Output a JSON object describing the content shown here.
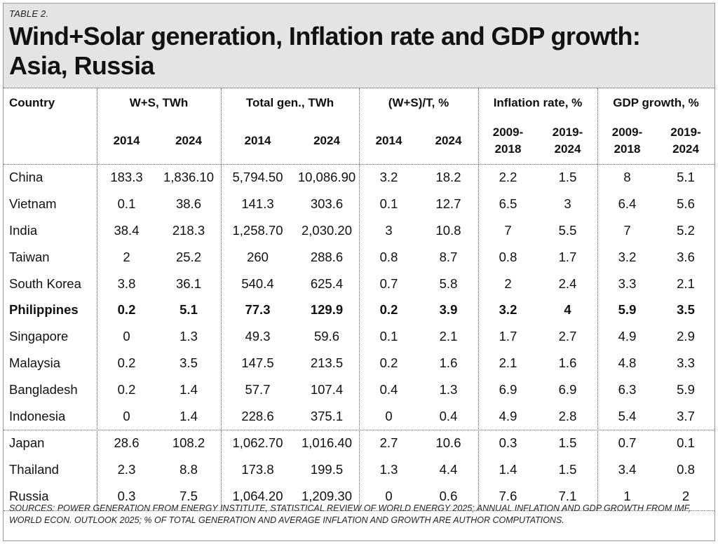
{
  "table_label": "TABLE 2.",
  "title_line1": "Wind+Solar generation, Inflation rate and GDP growth:",
  "title_line2": "Asia, Russia",
  "columns": {
    "country": "Country",
    "ws": "W+S, TWh",
    "total": "Total gen., TWh",
    "share": "(W+S)/T, %",
    "inflation": "Inflation rate, %",
    "gdp": "GDP growth, %"
  },
  "subheaders": [
    "2014",
    "2024",
    "2014",
    "2024",
    "2014",
    "2024",
    "2009-\n2018",
    "2019-\n2024",
    "2009-\n2018",
    "2019-\n2024"
  ],
  "rows": [
    {
      "country": "China",
      "v": [
        "183.3",
        "1,836.10",
        "5,794.50",
        "10,086.90",
        "3.2",
        "18.2",
        "2.2",
        "1.5",
        "8",
        "5.1"
      ]
    },
    {
      "country": "Vietnam",
      "v": [
        "0.1",
        "38.6",
        "141.3",
        "303.6",
        "0.1",
        "12.7",
        "6.5",
        "3",
        "6.4",
        "5.6"
      ]
    },
    {
      "country": "India",
      "v": [
        "38.4",
        "218.3",
        "1,258.70",
        "2,030.20",
        "3",
        "10.8",
        "7",
        "5.5",
        "7",
        "5.2"
      ]
    },
    {
      "country": "Taiwan",
      "v": [
        "2",
        "25.2",
        "260",
        "288.6",
        "0.8",
        "8.7",
        "0.8",
        "1.7",
        "3.2",
        "3.6"
      ]
    },
    {
      "country": "South Korea",
      "v": [
        "3.8",
        "36.1",
        "540.4",
        "625.4",
        "0.7",
        "5.8",
        "2",
        "2.4",
        "3.3",
        "2.1"
      ]
    },
    {
      "country": "Philippines",
      "v": [
        "0.2",
        "5.1",
        "77.3",
        "129.9",
        "0.2",
        "3.9",
        "3.2",
        "4",
        "5.9",
        "3.5"
      ]
    },
    {
      "country": "Singapore",
      "v": [
        "0",
        "1.3",
        "49.3",
        "59.6",
        "0.1",
        "2.1",
        "1.7",
        "2.7",
        "4.9",
        "2.9"
      ]
    },
    {
      "country": "Malaysia",
      "v": [
        "0.2",
        "3.5",
        "147.5",
        "213.5",
        "0.2",
        "1.6",
        "2.1",
        "1.6",
        "4.8",
        "3.3"
      ]
    },
    {
      "country": "Bangladesh",
      "v": [
        "0.2",
        "1.4",
        "57.7",
        "107.4",
        "0.4",
        "1.3",
        "6.9",
        "6.9",
        "6.3",
        "5.9"
      ]
    },
    {
      "country": "Indonesia",
      "v": [
        "0",
        "1.4",
        "228.6",
        "375.1",
        "0",
        "0.4",
        "4.9",
        "2.8",
        "5.4",
        "3.7"
      ]
    },
    {
      "country": "Japan",
      "v": [
        "28.6",
        "108.2",
        "1,062.70",
        "1,016.40",
        "2.7",
        "10.6",
        "0.3",
        "1.5",
        "0.7",
        "0.1"
      ]
    },
    {
      "country": "Thailand",
      "v": [
        "2.3",
        "8.8",
        "173.8",
        "199.5",
        "1.3",
        "4.4",
        "1.4",
        "1.5",
        "3.4",
        "0.8"
      ]
    },
    {
      "country": "Russia",
      "v": [
        "0.3",
        "7.5",
        "1,064.20",
        "1,209.30",
        "0",
        "0.6",
        "7.6",
        "7.1",
        "1",
        "2"
      ]
    }
  ],
  "bold_row": "Philippines",
  "footer": "Sources: Power generation from Energy Institute, Statistical Review of World Energy 2025; Annual inflation and GDP growth from IMF, World Econ. Outlook 2025; % of total generation and average inflation and growth are author computations.",
  "colors": {
    "header_bg": "#e3e4e6",
    "rule": "#666666"
  }
}
